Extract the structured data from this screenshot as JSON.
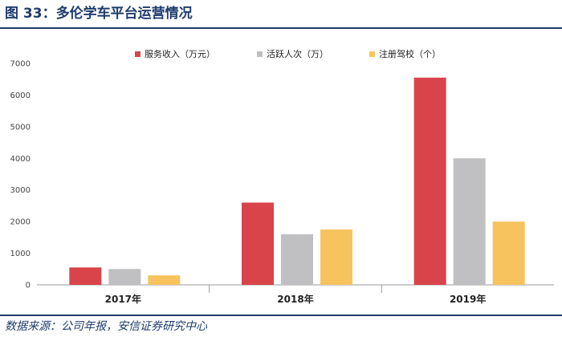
{
  "header": {
    "title": "图 33：多伦学车平台运营情况"
  },
  "footer": {
    "source": "数据来源：公司年报，安信证券研究中心"
  },
  "chart_data": {
    "type": "bar",
    "title": "多伦学车平台运营情况",
    "categories": [
      "2017年",
      "2018年",
      "2019年"
    ],
    "series": [
      {
        "name": "服务收入（万元）",
        "color": "#d9434a",
        "values": [
          550,
          2600,
          6550
        ]
      },
      {
        "name": "活跃人次（万）",
        "color": "#c0bfc1",
        "values": [
          500,
          1600,
          4000
        ]
      },
      {
        "name": "注册驾校（个）",
        "color": "#f7c35f",
        "values": [
          300,
          1750,
          2000
        ]
      }
    ],
    "ylim": [
      0,
      7000
    ],
    "yticks": [
      0,
      1000,
      2000,
      3000,
      4000,
      5000,
      6000,
      7000
    ],
    "xlabel": "",
    "ylabel": "",
    "legend": "top-center"
  }
}
